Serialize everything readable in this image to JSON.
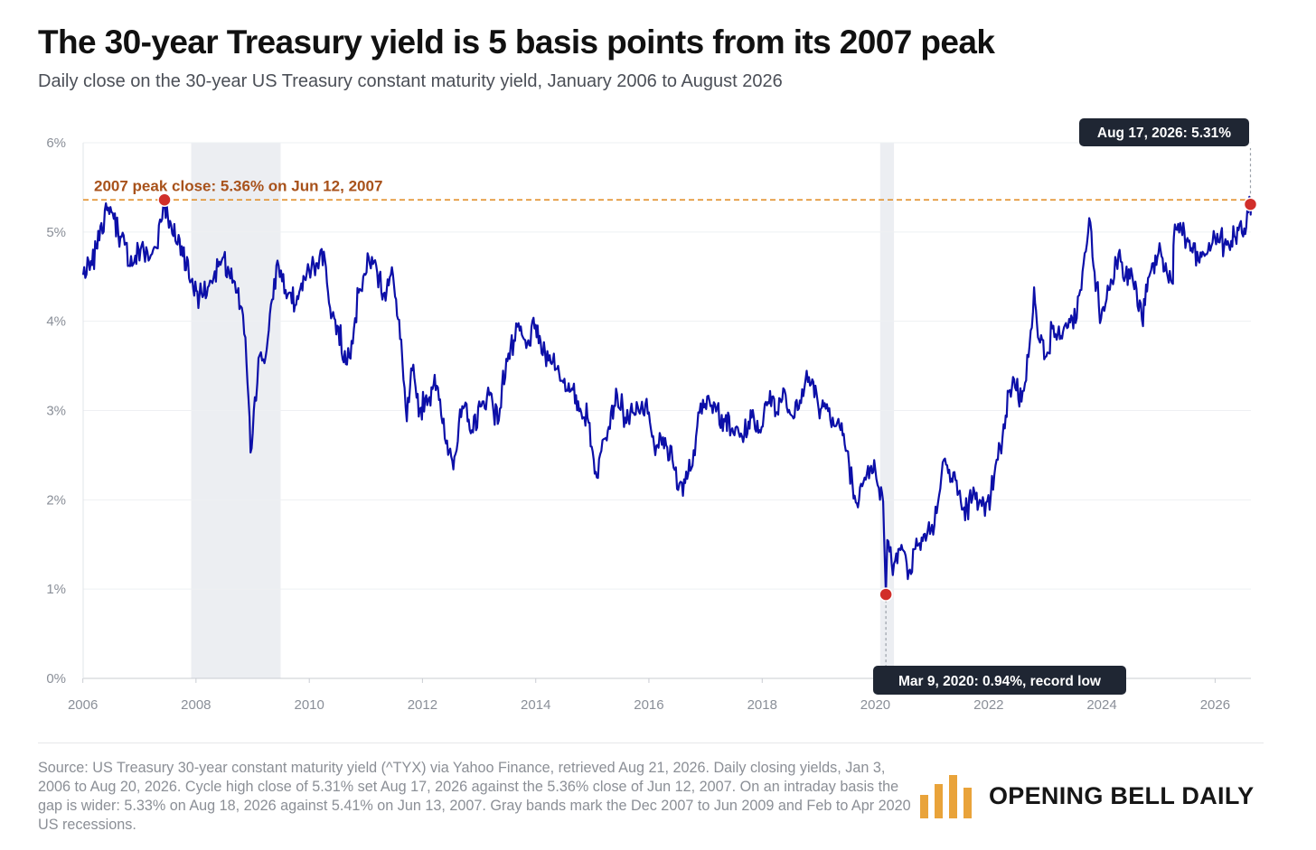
{
  "header": {
    "title": "The 30-year Treasury yield is 5 basis points from its 2007 peak",
    "subtitle": "Daily close on the 30-year US Treasury constant maturity yield, January 2006 to August 2026"
  },
  "footer": {
    "source": "Source: US Treasury 30-year constant maturity yield (^TYX) via Yahoo Finance, retrieved Aug 21, 2026. Daily closing yields, Jan 3, 2006 to Aug 20, 2026. Cycle high close of 5.31% set Aug 17, 2026 against the 5.36% close of Jun 12, 2007. On an intraday basis the gap is wider: 5.33% on Aug 18, 2026 against 5.41% on Jun 13, 2007. Gray bands mark the Dec 2007 to Jun 2009 and Feb to Apr 2020 US recessions.",
    "brand": "OPENING BELL DAILY",
    "brand_icon": "bar-chart-logo-icon"
  },
  "colors": {
    "line": "#0c0fa8",
    "peak_line": "#e08a1f",
    "marker": "#d12f2a",
    "recession": "#eceef2",
    "callout_bg": "#1f2633",
    "brand_bars": "#e9a33a"
  },
  "chart_data": {
    "type": "line",
    "title": "The 30-year Treasury yield is 5 basis points from its 2007 peak",
    "xlabel": "",
    "ylabel": "",
    "x_range": [
      "2006-01-03",
      "2026-08-20"
    ],
    "ylim": [
      0,
      6
    ],
    "x_ticks": [
      "2006",
      "2008",
      "2010",
      "2012",
      "2014",
      "2016",
      "2018",
      "2020",
      "2022",
      "2024",
      "2026"
    ],
    "y_ticks": [
      "0%",
      "1%",
      "2%",
      "3%",
      "4%",
      "5%",
      "6%"
    ],
    "grid": "horizontal",
    "series": [
      {
        "x": [
          "2006-01-03",
          "2006-03-01",
          "2006-05-01",
          "2006-06-28",
          "2006-09-01",
          "2006-11-15",
          "2007-01-15",
          "2007-03-01",
          "2007-04-15",
          "2007-06-12",
          "2007-08-01",
          "2007-10-01",
          "2007-12-01",
          "2008-01-23",
          "2008-03-17",
          "2008-05-01",
          "2008-06-15",
          "2008-08-01",
          "2008-09-15",
          "2008-10-15",
          "2008-11-15",
          "2008-12-18",
          "2009-01-15",
          "2009-02-15",
          "2009-03-18",
          "2009-04-15",
          "2009-06-10",
          "2009-08-01",
          "2009-10-01",
          "2009-12-01",
          "2010-01-15",
          "2010-02-15",
          "2010-04-05",
          "2010-05-15",
          "2010-07-01",
          "2010-08-25",
          "2010-10-01",
          "2010-11-15",
          "2010-12-15",
          "2011-02-09",
          "2011-03-15",
          "2011-05-01",
          "2011-06-25",
          "2011-08-10",
          "2011-09-22",
          "2011-10-27",
          "2011-12-15",
          "2012-02-15",
          "2012-03-20",
          "2012-05-01",
          "2012-06-01",
          "2012-07-25",
          "2012-09-14",
          "2012-11-15",
          "2013-01-15",
          "2013-03-15",
          "2013-05-01",
          "2013-06-25",
          "2013-08-20",
          "2013-09-05",
          "2013-11-01",
          "2013-12-31",
          "2014-02-15",
          "2014-04-01",
          "2014-06-01",
          "2014-08-15",
          "2014-10-15",
          "2014-12-01",
          "2015-01-30",
          "2015-03-15",
          "2015-05-01",
          "2015-06-10",
          "2015-08-01",
          "2015-10-01",
          "2015-11-10",
          "2016-01-01",
          "2016-02-11",
          "2016-04-01",
          "2016-06-01",
          "2016-07-08",
          "2016-08-15",
          "2016-10-01",
          "2016-11-15",
          "2016-12-15",
          "2017-02-01",
          "2017-04-15",
          "2017-06-15",
          "2017-09-07",
          "2017-10-25",
          "2017-12-15",
          "2018-02-21",
          "2018-04-01",
          "2018-05-17",
          "2018-07-01",
          "2018-08-25",
          "2018-10-08",
          "2018-11-20",
          "2018-12-31",
          "2019-02-15",
          "2019-04-01",
          "2019-05-15",
          "2019-07-01",
          "2019-08-28",
          "2019-10-01",
          "2019-11-15",
          "2019-12-31",
          "2020-01-31",
          "2020-02-20",
          "2020-03-09",
          "2020-03-18",
          "2020-04-15",
          "2020-05-15",
          "2020-07-01",
          "2020-08-04",
          "2020-09-15",
          "2020-11-15",
          "2021-01-01",
          "2021-02-15",
          "2021-03-18",
          "2021-04-15",
          "2021-06-01",
          "2021-07-20",
          "2021-08-15",
          "2021-10-15",
          "2021-12-08",
          "2022-01-15",
          "2022-03-01",
          "2022-04-15",
          "2022-05-10",
          "2022-06-14",
          "2022-08-01",
          "2022-09-15",
          "2022-10-21",
          "2022-11-15",
          "2023-01-15",
          "2023-02-15",
          "2023-04-06",
          "2023-05-15",
          "2023-07-01",
          "2023-08-15",
          "2023-10-19",
          "2023-11-15",
          "2023-12-27",
          "2024-02-15",
          "2024-04-25",
          "2024-06-01",
          "2024-07-15",
          "2024-09-16",
          "2024-11-01",
          "2025-01-14",
          "2025-03-01",
          "2025-04-04",
          "2025-04-10",
          "2025-05-21",
          "2025-06-30",
          "2025-08-01",
          "2025-09-15",
          "2025-11-01",
          "2025-12-15",
          "2026-01-15",
          "2026-03-01",
          "2026-04-15",
          "2026-06-01",
          "2026-07-01",
          "2026-08-03",
          "2026-08-17",
          "2026-08-20"
        ],
        "y": [
          4.52,
          4.63,
          5.1,
          5.28,
          4.95,
          4.62,
          4.85,
          4.68,
          4.83,
          5.36,
          4.98,
          4.84,
          4.45,
          4.28,
          4.38,
          4.56,
          4.68,
          4.55,
          4.32,
          4.17,
          3.82,
          2.53,
          3.15,
          3.62,
          3.53,
          3.9,
          4.68,
          4.35,
          4.18,
          4.48,
          4.6,
          4.65,
          4.78,
          4.15,
          3.95,
          3.52,
          3.78,
          4.32,
          4.5,
          4.72,
          4.55,
          4.32,
          4.52,
          3.8,
          2.88,
          3.45,
          3.02,
          3.15,
          3.4,
          2.95,
          2.63,
          2.48,
          3.05,
          2.78,
          3.05,
          3.2,
          2.85,
          3.58,
          3.78,
          3.94,
          3.7,
          3.96,
          3.62,
          3.62,
          3.42,
          3.22,
          3.02,
          2.92,
          2.25,
          2.68,
          2.98,
          3.18,
          2.92,
          2.95,
          3.02,
          2.98,
          2.5,
          2.7,
          2.45,
          2.11,
          2.23,
          2.35,
          2.98,
          3.12,
          3.05,
          2.95,
          2.78,
          2.72,
          2.92,
          2.78,
          3.22,
          2.98,
          3.25,
          2.96,
          3.02,
          3.35,
          3.35,
          3.02,
          3.02,
          2.92,
          2.82,
          2.55,
          1.97,
          2.18,
          2.38,
          2.35,
          2.0,
          1.98,
          0.94,
          1.55,
          1.29,
          1.4,
          1.43,
          1.2,
          1.45,
          1.62,
          1.72,
          2.05,
          2.45,
          2.3,
          2.22,
          1.89,
          1.92,
          2.08,
          1.82,
          2.05,
          2.45,
          2.8,
          3.21,
          3.35,
          3.1,
          3.6,
          4.38,
          3.82,
          3.65,
          3.92,
          3.8,
          3.98,
          3.92,
          4.35,
          5.11,
          4.55,
          4.03,
          4.35,
          4.8,
          4.5,
          4.52,
          4.02,
          4.5,
          4.8,
          4.5,
          4.42,
          4.95,
          5.1,
          4.9,
          4.82,
          4.68,
          4.75,
          4.88,
          4.98,
          4.85,
          4.9,
          5.02,
          4.95,
          5.22,
          5.31,
          5.29
        ]
      }
    ],
    "reference_line": {
      "y": 5.36
    },
    "recessions": [
      {
        "start": "2007-12-01",
        "end": "2009-06-30"
      },
      {
        "start": "2020-02-01",
        "end": "2020-04-30"
      }
    ],
    "annotations": [
      {
        "date": "2007-06-12",
        "value": 5.36,
        "text": "2007 peak close: 5.36% on Jun 12, 2007"
      },
      {
        "date": "2026-08-17",
        "value": 5.31,
        "text": "Aug 17, 2026: 5.31%"
      },
      {
        "date": "2020-03-09",
        "value": 0.94,
        "text": "Mar 9, 2020: 0.94%, record low"
      }
    ]
  }
}
